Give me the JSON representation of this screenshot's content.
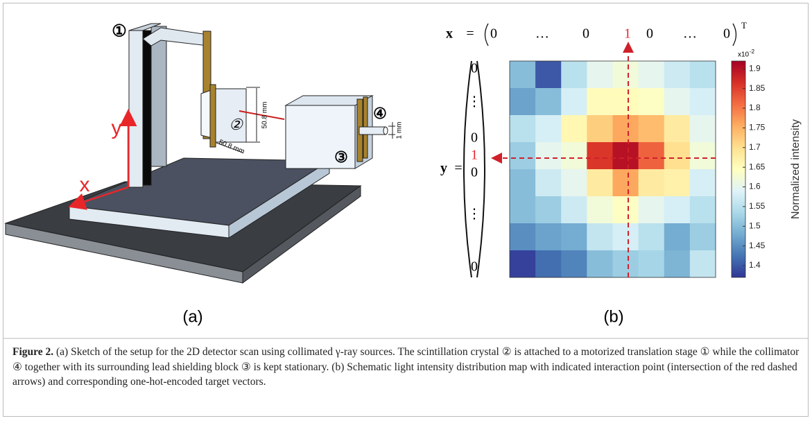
{
  "panel_a": {
    "label": "(a)",
    "markers": [
      "①",
      "②",
      "③",
      "④"
    ],
    "axes": {
      "x": "x",
      "y": "y"
    },
    "dimensions": [
      "50.8 mm",
      "50.8 mm",
      "1 mm"
    ]
  },
  "chart_data": {
    "type": "heatmap",
    "label": "(b)",
    "values": [
      [
        1.5,
        1.4,
        1.55,
        1.6,
        1.62,
        1.6,
        1.57,
        1.55
      ],
      [
        1.47,
        1.5,
        1.58,
        1.65,
        1.65,
        1.64,
        1.6,
        1.58
      ],
      [
        1.55,
        1.58,
        1.66,
        1.72,
        1.76,
        1.74,
        1.68,
        1.6
      ],
      [
        1.52,
        1.6,
        1.62,
        1.86,
        1.9,
        1.82,
        1.7,
        1.62
      ],
      [
        1.5,
        1.57,
        1.6,
        1.68,
        1.76,
        1.68,
        1.67,
        1.58
      ],
      [
        1.5,
        1.52,
        1.57,
        1.62,
        1.64,
        1.6,
        1.58,
        1.55
      ],
      [
        1.45,
        1.47,
        1.48,
        1.56,
        1.58,
        1.55,
        1.48,
        1.52
      ],
      [
        1.38,
        1.42,
        1.44,
        1.5,
        1.52,
        1.53,
        1.49,
        1.56
      ]
    ],
    "colormap": [
      "#313695",
      "#4575b4",
      "#74add1",
      "#abd9e9",
      "#e0f3f8",
      "#ffffbf",
      "#fee090",
      "#fdae61",
      "#f46d43",
      "#d73027",
      "#a50026"
    ],
    "colorbar": {
      "label": "Normalized intensity",
      "scale": "x10",
      "scale_exp": "-2",
      "lim": [
        1.37,
        1.92
      ],
      "ticks": [
        1.4,
        1.45,
        1.5,
        1.55,
        1.6,
        1.65,
        1.7,
        1.75,
        1.8,
        1.85,
        1.9
      ]
    },
    "x_vector": {
      "name": "x",
      "equals": "=",
      "entries": [
        "0",
        "…",
        "0",
        "1",
        "0",
        "…",
        "0"
      ],
      "transpose": "T"
    },
    "y_vector": {
      "name": "y",
      "equals": "=",
      "entries": [
        "0",
        "⋮",
        "0",
        "1",
        "0",
        "⋮",
        "0"
      ]
    }
  },
  "caption": {
    "label": "Figure 2.",
    "text": "(a) Sketch of the setup for the 2D detector scan using collimated γ-ray sources. The scintillation crystal ② is attached to a motorized translation stage ① while the collimator ④ together with its surrounding lead shielding block ③ is kept stationary. (b) Schematic light intensity distribution map with indicated interaction point (intersection of the red dashed arrows) and corresponding one-hot-encoded target vectors."
  }
}
